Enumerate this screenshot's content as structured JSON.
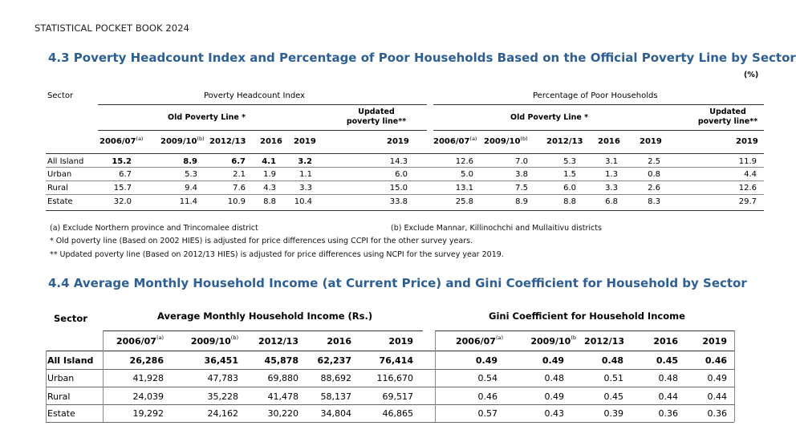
{
  "page_header": "STATISTICAL POCKET BOOK 2024",
  "table1": {
    "title": "4.3 Poverty Headcount Index and Percentage of Poor Households Based on the Official Poverty Line by Sector",
    "unit": "(%)",
    "sector_label": "Sector",
    "group1": "Poverty Headcount Index",
    "group2": "Percentage of Poor Households",
    "old_line": "Old Poverty Line *",
    "updated_line_1": "Updated",
    "updated_line_2": "poverty line**",
    "years_old": [
      "2006/07",
      "2009/10",
      "2012/13",
      "2016",
      "2019"
    ],
    "year_updated": "2019",
    "sup_a": "(a)",
    "sup_b": "(b)",
    "rows": [
      {
        "sector": "All Island",
        "phi": [
          "15.2",
          "8.9",
          "6.7",
          "4.1",
          "3.2"
        ],
        "phi_upd": "14.3",
        "pph": [
          "12.6",
          "7.0",
          "5.3",
          "3.1",
          "2.5"
        ],
        "pph_upd": "11.9"
      },
      {
        "sector": "Urban",
        "phi": [
          "6.7",
          "5.3",
          "2.1",
          "1.9",
          "1.1"
        ],
        "phi_upd": "6.0",
        "pph": [
          "5.0",
          "3.8",
          "1.5",
          "1.3",
          "0.8"
        ],
        "pph_upd": "4.4"
      },
      {
        "sector": "Rural",
        "phi": [
          "15.7",
          "9.4",
          "7.6",
          "4.3",
          "3.3"
        ],
        "phi_upd": "15.0",
        "pph": [
          "13.1",
          "7.5",
          "6.0",
          "3.3",
          "2.6"
        ],
        "pph_upd": "12.6"
      },
      {
        "sector": "Estate",
        "phi": [
          "32.0",
          "11.4",
          "10.9",
          "8.8",
          "10.4"
        ],
        "phi_upd": "33.8",
        "pph": [
          "25.8",
          "8.9",
          "8.8",
          "6.8",
          "8.3"
        ],
        "pph_upd": "29.7"
      }
    ],
    "notes": {
      "a": "(a) Exclude Northern province and Trincomalee district",
      "b": "(b) Exclude Mannar, Killinochchi and  Mullaitivu districts",
      "star1": "* Old poverty line (Based on 2002 HIES) is adjusted for price differences using CCPI for the other survey years.",
      "star2": "** Updated poverty line (Based on 2012/13 HIES) is adjusted for price differences using NCPI for the survey year 2019."
    }
  },
  "table2": {
    "title": "4.4 Average Monthly Household Income (at Current Price) and Gini Coefficient for Household by Sector",
    "sector_label": "Sector",
    "group1": "Average  Monthly Household Income (Rs.)",
    "group2": "Gini Coefficient for Household Income",
    "years": [
      "2006/07",
      "2009/10",
      "2012/13",
      "2016",
      "2019"
    ],
    "sup_a": "(a)",
    "sup_b": "(b)",
    "sup_b2": "(b",
    "rows": [
      {
        "sector": "All Island",
        "income": [
          "26,286",
          "36,451",
          "45,878",
          "62,237",
          "76,414"
        ],
        "gini": [
          "0.49",
          "0.49",
          "0.48",
          "0.45",
          "0.46"
        ]
      },
      {
        "sector": "Urban",
        "income": [
          "41,928",
          "47,783",
          "69,880",
          "88,692",
          "116,670"
        ],
        "gini": [
          "0.54",
          "0.48",
          "0.51",
          "0.48",
          "0.49"
        ]
      },
      {
        "sector": "Rural",
        "income": [
          "24,039",
          "35,228",
          "41,478",
          "58,137",
          "69,517"
        ],
        "gini": [
          "0.46",
          "0.49",
          "0.45",
          "0.44",
          "0.44"
        ]
      },
      {
        "sector": "Estate",
        "income": [
          "19,292",
          "24,162",
          "30,220",
          "34,804",
          "46,865"
        ],
        "gini": [
          "0.57",
          "0.43",
          "0.39",
          "0.36",
          "0.36"
        ]
      }
    ]
  }
}
